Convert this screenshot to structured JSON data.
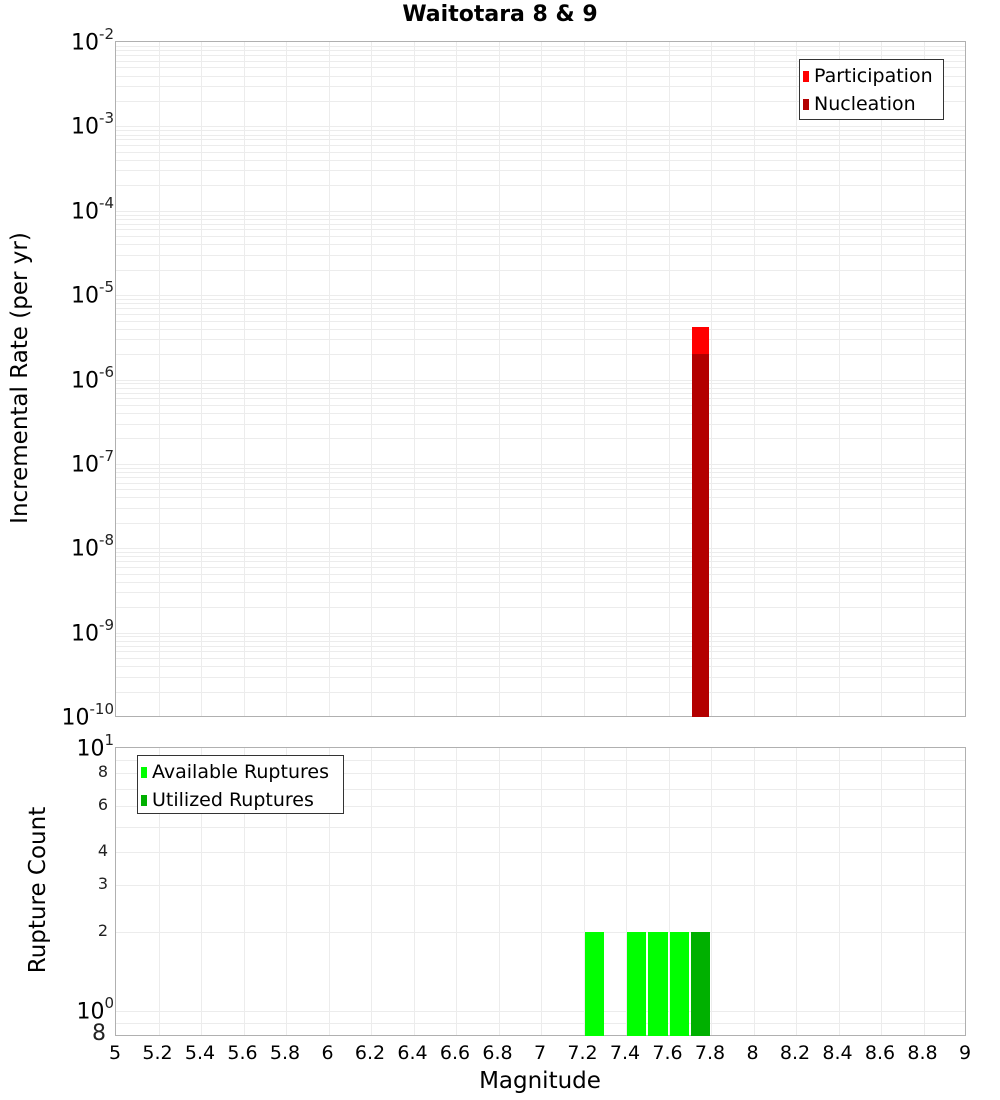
{
  "chart_data": [
    {
      "type": "bar",
      "title": "Waitotara 8 & 9",
      "xlabel": "Magnitude",
      "ylabel": "Incremental Rate (per yr)",
      "yscale": "log",
      "ylim": [
        1e-10,
        0.01
      ],
      "xlim": [
        5,
        9
      ],
      "y_ticks": [
        {
          "base": "10",
          "exp": "-2"
        },
        {
          "base": "10",
          "exp": "-3"
        },
        {
          "base": "10",
          "exp": "-4"
        },
        {
          "base": "10",
          "exp": "-5"
        },
        {
          "base": "10",
          "exp": "-6"
        },
        {
          "base": "10",
          "exp": "-7"
        },
        {
          "base": "10",
          "exp": "-8"
        },
        {
          "base": "10",
          "exp": "-9"
        },
        {
          "base": "10",
          "exp": "-10"
        }
      ],
      "grid": true,
      "legend_position": "top-right",
      "bin_width": 0.1,
      "series": [
        {
          "name": "Participation",
          "color": "#ff0000",
          "x": [
            7.75
          ],
          "values": [
            4.2e-06
          ]
        },
        {
          "name": "Nucleation",
          "color": "#b30000",
          "x": [
            7.75
          ],
          "values": [
            2e-06
          ]
        }
      ]
    },
    {
      "type": "bar",
      "title": "",
      "xlabel": "Magnitude",
      "ylabel": "Rupture Count",
      "yscale": "log",
      "ylim": [
        0.8,
        10
      ],
      "xlim": [
        5,
        9
      ],
      "y_ticks_major": [
        {
          "base": "10",
          "exp": "1"
        },
        {
          "base": "10",
          "exp": "0"
        }
      ],
      "y_ticks_minor": [
        "8",
        "6",
        "4",
        "3",
        "2",
        "8"
      ],
      "x_ticks": [
        "5",
        "5.2",
        "5.4",
        "5.6",
        "5.8",
        "6",
        "6.2",
        "6.4",
        "6.6",
        "6.8",
        "7",
        "7.2",
        "7.4",
        "7.6",
        "7.8",
        "8",
        "8.2",
        "8.4",
        "8.6",
        "8.8",
        "9"
      ],
      "grid": true,
      "legend_position": "top-left",
      "bin_width": 0.1,
      "series": [
        {
          "name": "Available Ruptures",
          "color": "#00ff00",
          "x": [
            7.25,
            7.45,
            7.55,
            7.65
          ],
          "values": [
            2,
            2,
            2,
            2
          ]
        },
        {
          "name": "Utilized Ruptures",
          "color": "#00b000",
          "x": [
            7.75
          ],
          "values": [
            2
          ]
        }
      ]
    }
  ],
  "labels": {
    "title": "Waitotara 8 & 9",
    "top_ylabel": "Incremental Rate (per yr)",
    "bottom_ylabel": "Rupture Count",
    "xlabel": "Magnitude",
    "legend_top": [
      "Participation",
      "Nucleation"
    ],
    "legend_bottom": [
      "Available Ruptures",
      "Utilized Ruptures"
    ]
  },
  "colors": {
    "participation": "#ff0000",
    "nucleation": "#b30000",
    "available": "#00ff00",
    "utilized": "#00b000"
  }
}
